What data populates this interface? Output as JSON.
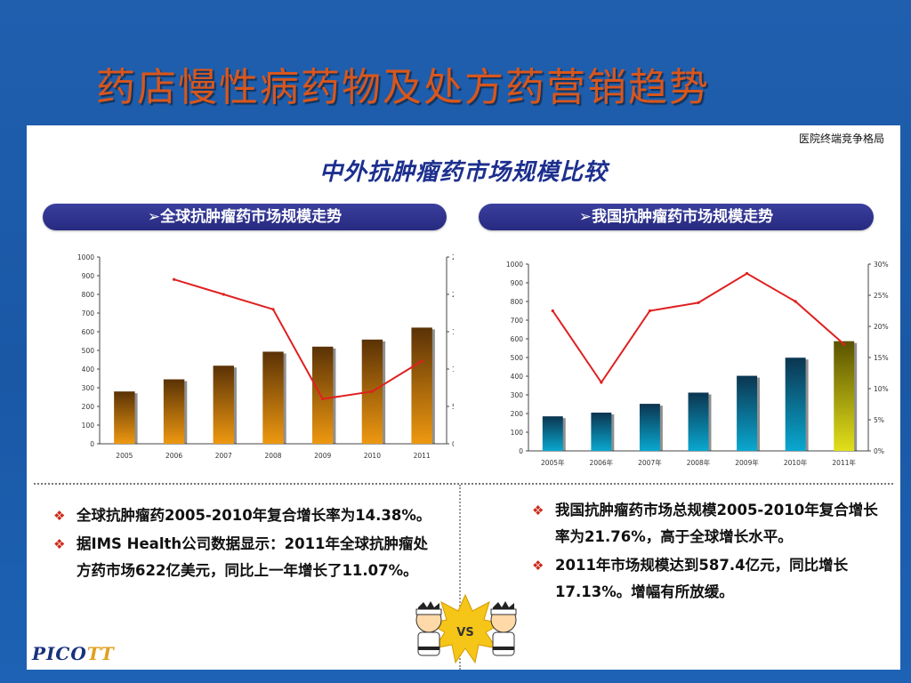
{
  "slide_title": "药店慢性病药物及处方药营销趋势",
  "corner_label": "医院终端竞争格局",
  "panel_title": "中外抗肿瘤药市场规模比较",
  "sections": {
    "left": "➢全球抗肿瘤药市场规模走势",
    "right": "➢我国抗肿瘤药市场规模走势"
  },
  "chart_data": [
    {
      "type": "bar",
      "categories": [
        "2005",
        "2006",
        "2007",
        "2008",
        "2009",
        "2010",
        "2011"
      ],
      "y_ticks": [
        "0",
        "100",
        "200",
        "300",
        "400",
        "500",
        "600",
        "700",
        "800",
        "900",
        "1000"
      ],
      "y2_ticks": [
        "0%",
        "5%",
        "10%",
        "15%",
        "20%",
        "25%"
      ],
      "ylim": [
        0,
        1000
      ],
      "y2lim": [
        0,
        25
      ],
      "series": [
        {
          "type": "bar",
          "values": [
            280,
            345,
            418,
            493,
            520,
            558,
            622
          ],
          "color": "#ee9810"
        },
        {
          "type": "line",
          "axis": "right",
          "values": [
            null,
            22.0,
            20.0,
            18.0,
            6.0,
            7.0,
            11.07
          ],
          "color": "#e02020"
        }
      ]
    },
    {
      "type": "bar",
      "categories": [
        "2005年",
        "2006年",
        "2007年",
        "2008年",
        "2009年",
        "2010年",
        "2011年"
      ],
      "y_ticks": [
        "0",
        "100",
        "200",
        "300",
        "400",
        "500",
        "600",
        "700",
        "800",
        "900",
        "1000"
      ],
      "y2_ticks": [
        "0%",
        "5%",
        "10%",
        "15%",
        "20%",
        "25%",
        "30%"
      ],
      "ylim": [
        0,
        1000
      ],
      "y2lim": [
        0,
        30
      ],
      "series": [
        {
          "type": "bar",
          "values": [
            185,
            205,
            252,
            312,
            402,
            499,
            587.4
          ],
          "colors": [
            "#0aa8d0",
            "#0aa8d0",
            "#0aa8d0",
            "#0aa8d0",
            "#0aa8d0",
            "#0aa8d0",
            "#e2e01a"
          ]
        },
        {
          "type": "line",
          "axis": "right",
          "values": [
            22.5,
            11.0,
            22.5,
            23.8,
            28.5,
            24.0,
            17.13
          ],
          "color": "#e02020"
        }
      ]
    }
  ],
  "notes_left": [
    "全球抗肿瘤药2005-2010年复合增长率为14.38%。",
    "据IMS Health公司数据显示：2011年全球抗肿瘤处方药市场622亿美元，同比上一年增长了11.07%。"
  ],
  "notes_right": [
    "我国抗肿瘤药市场总规模2005-2010年复合增长率为21.76%，高于全球增长水平。",
    "2011年市场规模达到587.4亿元，同比增长17.13%。增幅有所放缓。"
  ],
  "vs_label": "VS",
  "logo": {
    "main": "PICO",
    "accent": "TT"
  },
  "colors": {
    "title": "#d8561c",
    "pill": "#2b2f86",
    "panel_title": "#1c2f8e",
    "bullet": "#cc2a1a"
  }
}
